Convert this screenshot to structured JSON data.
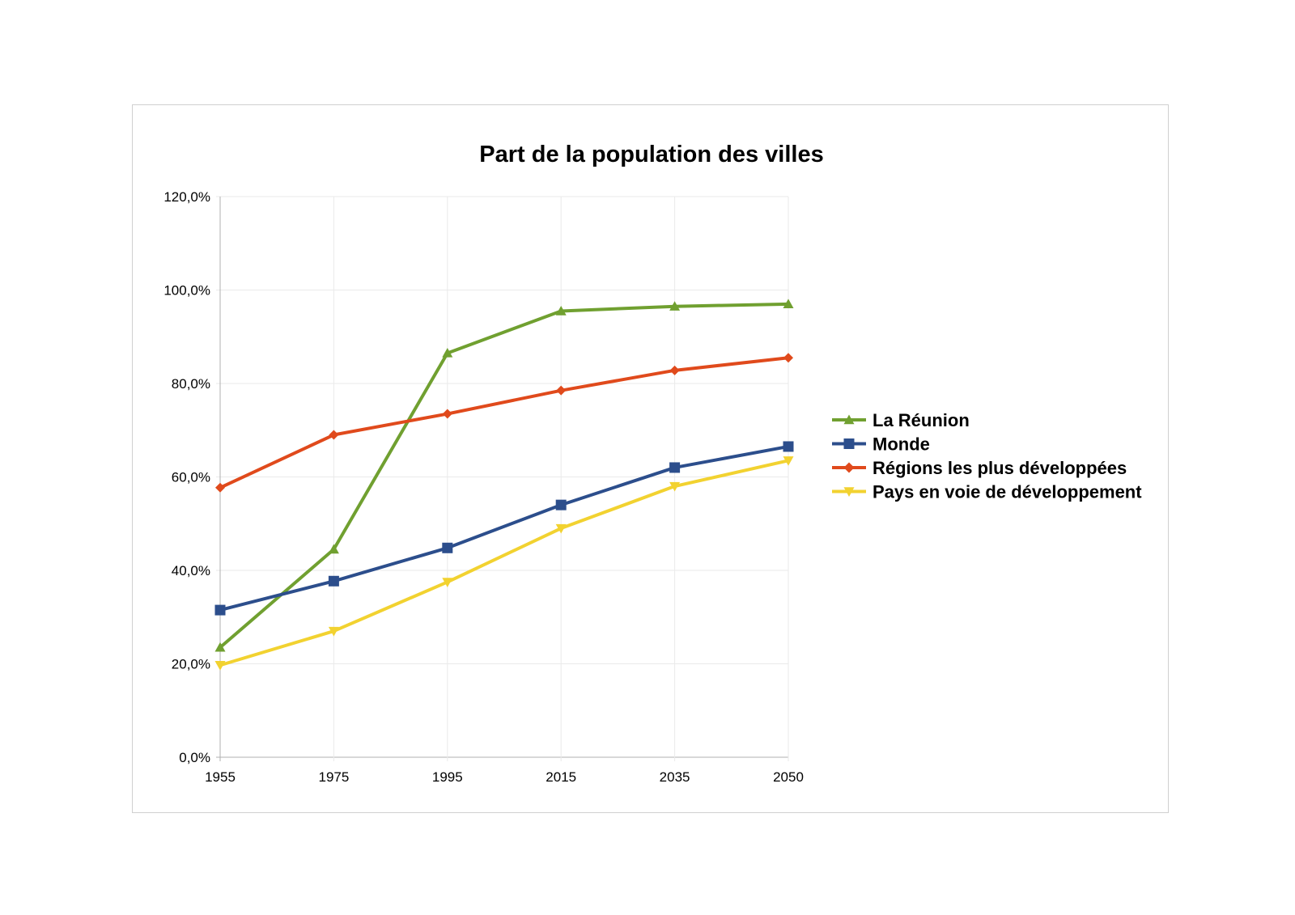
{
  "chart_data": {
    "type": "line",
    "title": "Part de la population des villes",
    "xlabel": "",
    "ylabel": "",
    "x": [
      "1955",
      "1975",
      "1995",
      "2015",
      "2035",
      "2050"
    ],
    "y_ticks": [
      "0,0%",
      "20,0%",
      "40,0%",
      "60,0%",
      "80,0%",
      "100,0%",
      "120,0%"
    ],
    "ylim": [
      0,
      120
    ],
    "grid": true,
    "legend_position": "right",
    "series": [
      {
        "name": "La Réunion",
        "color": "#70a030",
        "marker": "triangle-up",
        "values": [
          23.5,
          44.5,
          86.5,
          95.5,
          96.5,
          97.0
        ]
      },
      {
        "name": "Monde",
        "color": "#2c4e8c",
        "marker": "square",
        "values": [
          31.5,
          37.7,
          44.8,
          54.0,
          62.0,
          66.5
        ]
      },
      {
        "name": "Régions les plus développées",
        "color": "#e04a1c",
        "marker": "diamond",
        "values": [
          57.7,
          69.0,
          73.5,
          78.5,
          82.8,
          85.5
        ]
      },
      {
        "name": "Pays en voie de développement",
        "color": "#f2d230",
        "marker": "triangle-down",
        "values": [
          19.7,
          27.0,
          37.5,
          49.0,
          58.0,
          63.5
        ]
      }
    ]
  }
}
